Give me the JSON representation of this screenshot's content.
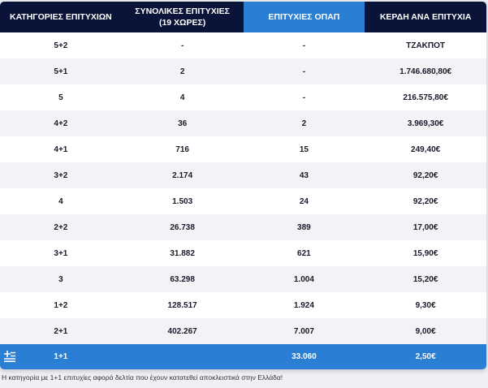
{
  "header": [
    "ΚΑΤΗΓΟΡΙΕΣ ΕΠΙΤΥΧΙΩΝ",
    "ΣΥΝΟΛΙΚΕΣ ΕΠΙΤΥΧΙΕΣ",
    "(19 ΧΩΡΕΣ)",
    "ΕΠΙΤΥΧΙΕΣ ΟΠΑΠ",
    "ΚΕΡΔΗ ΑΝΑ ΕΠΙΤΥΧΙΑ"
  ],
  "rows": [
    [
      "5+2",
      "-",
      "-",
      "ΤΖΑΚΠΟΤ"
    ],
    [
      "5+1",
      "2",
      "-",
      "1.746.680,80€"
    ],
    [
      "5",
      "4",
      "-",
      "216.575,80€"
    ],
    [
      "4+2",
      "36",
      "2",
      "3.969,30€"
    ],
    [
      "4+1",
      "716",
      "15",
      "249,40€"
    ],
    [
      "3+2",
      "2.174",
      "43",
      "92,20€"
    ],
    [
      "4",
      "1.503",
      "24",
      "92,20€"
    ],
    [
      "2+2",
      "26.738",
      "389",
      "17,00€"
    ],
    [
      "3+1",
      "31.882",
      "621",
      "15,90€"
    ],
    [
      "3",
      "63.298",
      "1.004",
      "15,20€"
    ],
    [
      "1+2",
      "128.517",
      "1.924",
      "9,30€"
    ],
    [
      "2+1",
      "402.267",
      "7.007",
      "9,00€"
    ]
  ],
  "last_row": [
    "1+1",
    "",
    "33.060",
    "2,50€"
  ],
  "note": "Η κατηγορία με 1+1 επιτυχίες αφορά δελτία που έχουν κατατεθεί αποκλειστικά στην Ελλάδα!",
  "colors": {
    "header": "#0a1438",
    "accent": "#2a7fd4"
  },
  "icons": {
    "last_row": "greek-flag-icon"
  }
}
